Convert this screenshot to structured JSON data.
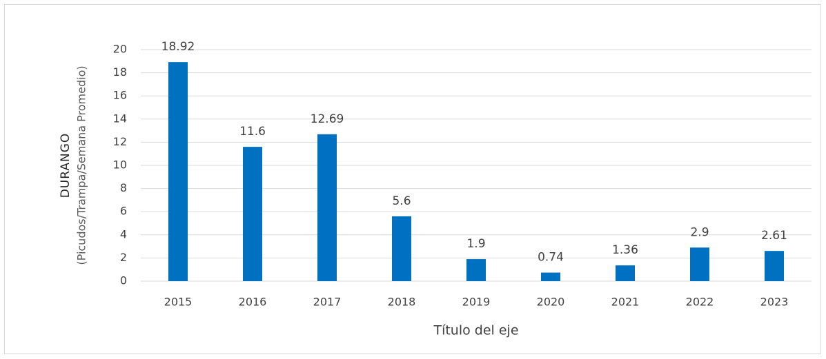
{
  "chart_data": {
    "type": "bar",
    "ylabel": "DURANGO",
    "ylabel_unit": "(Picudos/Trampa/Semana Promedio)",
    "xlabel": "Título del eje",
    "categories": [
      "2015",
      "2016",
      "2017",
      "2018",
      "2019",
      "2020",
      "2021",
      "2022",
      "2023"
    ],
    "values": [
      18.92,
      11.6,
      12.69,
      5.6,
      1.9,
      0.74,
      1.36,
      2.9,
      2.61
    ],
    "color": "#0070c0",
    "ylim": [
      0,
      20
    ],
    "yticks": [
      0,
      2,
      4,
      6,
      8,
      10,
      12,
      14,
      16,
      18,
      20
    ],
    "grid": true
  }
}
